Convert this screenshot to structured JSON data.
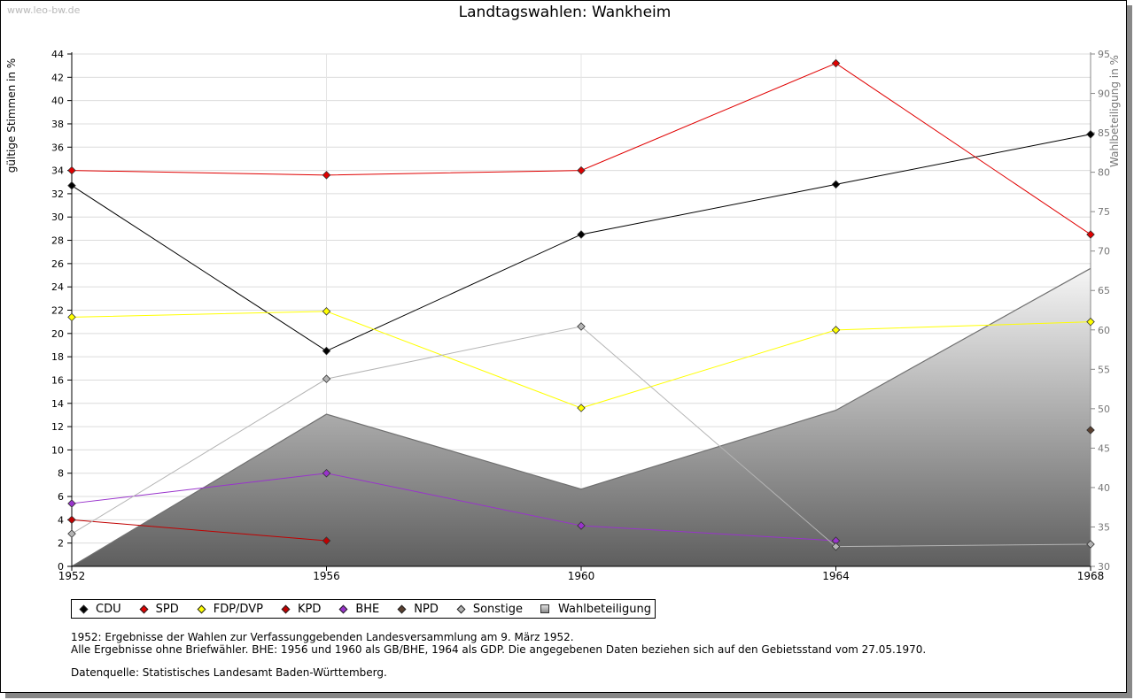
{
  "watermark": "www.leo-bw.de",
  "chart_data": {
    "type": "line",
    "title": "Landtagswahlen: Wankheim",
    "ylabel": "gültige Stimmen in %",
    "y2label": "Wahlbeteiligung in %",
    "x": [
      1952,
      1956,
      1960,
      1964,
      1968
    ],
    "ylim": [
      0,
      44
    ],
    "yticks": [
      0,
      2,
      4,
      6,
      8,
      10,
      12,
      14,
      16,
      18,
      20,
      22,
      24,
      26,
      28,
      30,
      32,
      34,
      36,
      38,
      40,
      42,
      44
    ],
    "y2lim": [
      30,
      95
    ],
    "y2ticks": [
      30,
      35,
      40,
      45,
      50,
      55,
      60,
      65,
      70,
      75,
      80,
      85,
      90,
      95
    ],
    "grid": true,
    "legend_position": "bottom",
    "series": [
      {
        "name": "CDU",
        "color": "#000000",
        "values": [
          32.7,
          18.5,
          28.5,
          32.8,
          37.1
        ]
      },
      {
        "name": "SPD",
        "color": "#e00000",
        "values": [
          34.0,
          33.6,
          34.0,
          43.2,
          28.5
        ]
      },
      {
        "name": "FDP/DVP",
        "color": "#ffff00",
        "values": [
          21.4,
          21.9,
          13.6,
          20.3,
          21.0
        ]
      },
      {
        "name": "KPD",
        "color": "#c00000",
        "values": [
          4.0,
          2.2,
          null,
          null,
          null
        ]
      },
      {
        "name": "BHE",
        "color": "#9933cc",
        "values": [
          5.4,
          8.0,
          3.5,
          2.2,
          null
        ]
      },
      {
        "name": "NPD",
        "color": "#5a4030",
        "values": [
          null,
          null,
          null,
          null,
          11.7
        ]
      },
      {
        "name": "Sonstige",
        "color": "#b4b4b4",
        "values": [
          2.8,
          16.1,
          20.6,
          1.7,
          1.9
        ]
      }
    ],
    "area": {
      "name": "Wahlbeteiligung",
      "axis": "right",
      "values": [
        30.0,
        49.3,
        39.8,
        49.8,
        67.8
      ]
    }
  },
  "notes": {
    "line1": "1952: Ergebnisse der Wahlen zur Verfassunggebenden Landesversammlung am 9. März 1952.",
    "line2": "Alle Ergebnisse ohne Briefwähler. BHE: 1956 und 1960 als GB/BHE, 1964 als GDP. Die angegebenen Daten beziehen sich auf den Gebietsstand vom 27.05.1970.",
    "source": "Datenquelle: Statistisches Landesamt Baden-Württemberg."
  }
}
